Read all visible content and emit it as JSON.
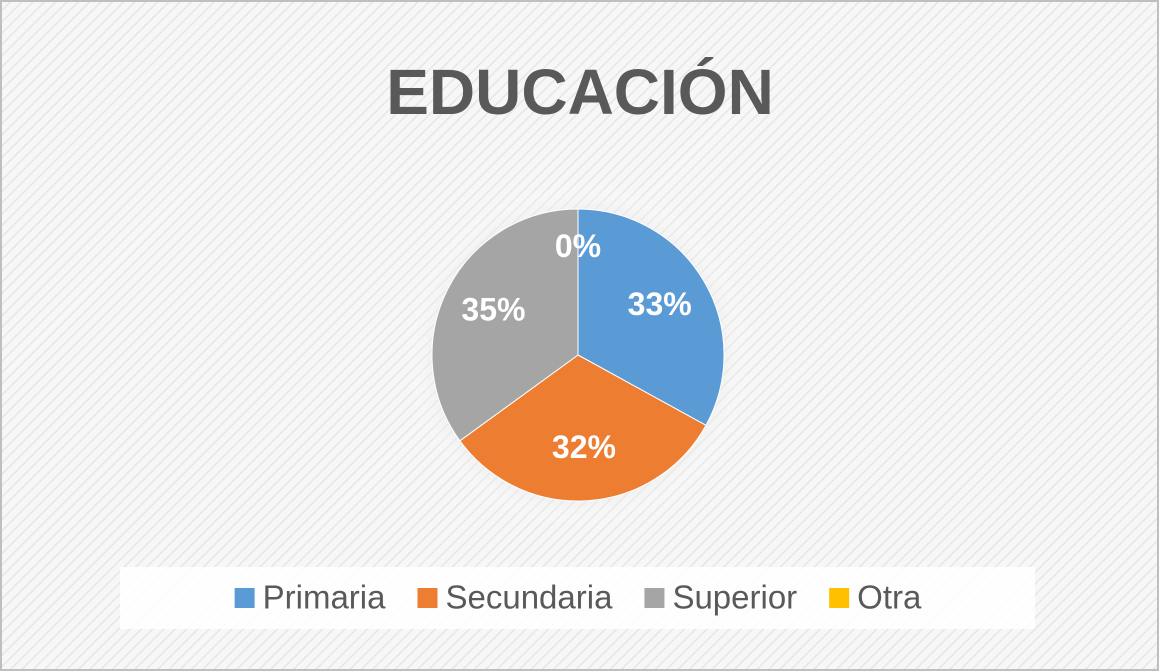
{
  "chart_data": {
    "type": "pie",
    "title": "EDUCACIÓN",
    "categories": [
      "Primaria",
      "Secundaria",
      "Superior",
      "Otra"
    ],
    "values": [
      33,
      32,
      35,
      0
    ],
    "value_labels": [
      "33%",
      "32%",
      "35%",
      "0%"
    ],
    "colors": [
      "#5b9bd5",
      "#ed7d31",
      "#a5a5a5",
      "#ffc000"
    ],
    "legend": "bottom"
  }
}
